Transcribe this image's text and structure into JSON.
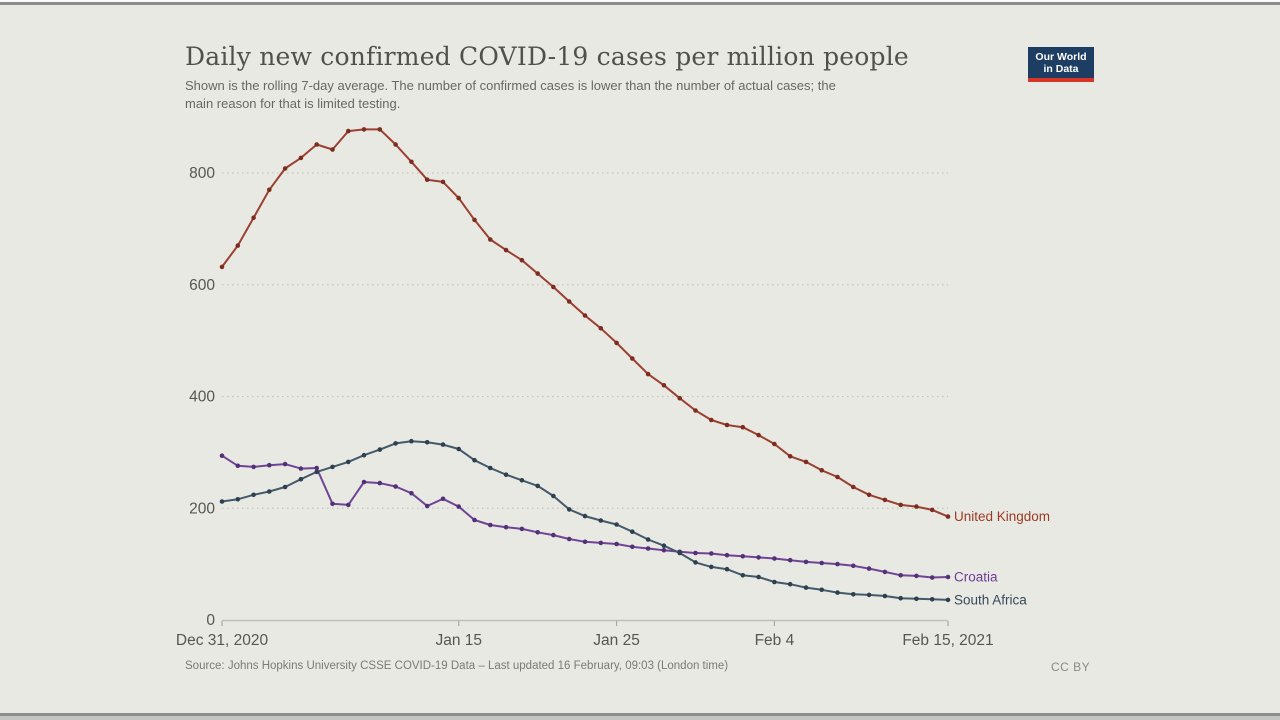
{
  "header": {
    "title": "Daily new confirmed COVID-19 cases per million people",
    "subtitle_line1": "Shown is the rolling 7-day average. The number of confirmed cases is lower than the number of actual cases; the",
    "subtitle_line2": "main reason for that is limited testing.",
    "logo_line1": "Our World",
    "logo_line2": "in Data",
    "logo_bg": "#1d3d63",
    "logo_accent": "#d8352a"
  },
  "footer": {
    "source": "Source: Johns Hopkins University CSSE COVID-19 Data – Last updated 16 February, 09:03 (London time)",
    "license": "CC BY"
  },
  "canvas_bg": "#e9e9e4",
  "chart_data": {
    "type": "line",
    "title": "Daily new confirmed COVID-19 cases per million people",
    "xlabel": "",
    "ylabel": "",
    "x_unit": "days since Dec 31, 2020",
    "x_ticks": [
      {
        "label": "Dec 31, 2020",
        "day": 0
      },
      {
        "label": "Jan 15",
        "day": 15
      },
      {
        "label": "Jan 25",
        "day": 25
      },
      {
        "label": "Feb 4",
        "day": 35
      },
      {
        "label": "Feb 15, 2021",
        "day": 46
      }
    ],
    "y_ticks": [
      0,
      200,
      400,
      600,
      800
    ],
    "ylim": [
      0,
      900
    ],
    "xlim_days": [
      0,
      46
    ],
    "grid": "dotted-horizontal",
    "legend": "line-end-labels",
    "axis_label_color": "#575752",
    "grid_color": "#c6c6c1",
    "axis_line_color": "#c0c0bb",
    "series": [
      {
        "name": "United Kingdom",
        "color": "#9b4030",
        "marker_color": "#7c2d20",
        "label_color": "#9c3a23",
        "values": [
          632,
          670,
          720,
          770,
          808,
          827,
          851,
          842,
          875,
          878,
          878,
          851,
          820,
          788,
          784,
          755,
          716,
          681,
          662,
          644,
          620,
          596,
          570,
          545,
          522,
          496,
          468,
          440,
          420,
          397,
          375,
          358,
          349,
          345,
          331,
          315,
          293,
          283,
          268,
          256,
          238,
          224,
          215,
          206,
          203,
          197,
          185
        ]
      },
      {
        "name": "Croatia",
        "color": "#6f4495",
        "marker_color": "#533077",
        "label_color": "#6d3d94",
        "values": [
          294,
          276,
          274,
          277,
          279,
          271,
          272,
          208,
          206,
          247,
          245,
          239,
          227,
          204,
          217,
          203,
          179,
          170,
          166,
          163,
          157,
          152,
          145,
          140,
          138,
          136,
          131,
          128,
          125,
          122,
          120,
          119,
          116,
          114,
          112,
          110,
          107,
          104,
          102,
          100,
          97,
          92,
          86,
          80,
          79,
          76,
          77
        ]
      },
      {
        "name": "South Africa",
        "color": "#44596a",
        "marker_color": "#2d4050",
        "label_color": "#37495c",
        "values": [
          212,
          216,
          224,
          230,
          238,
          252,
          265,
          274,
          283,
          295,
          305,
          316,
          320,
          318,
          314,
          306,
          286,
          272,
          260,
          250,
          240,
          222,
          198,
          186,
          178,
          171,
          158,
          144,
          133,
          120,
          103,
          95,
          91,
          80,
          77,
          68,
          64,
          58,
          54,
          49,
          46,
          45,
          43,
          39,
          38,
          37,
          36
        ]
      }
    ]
  }
}
